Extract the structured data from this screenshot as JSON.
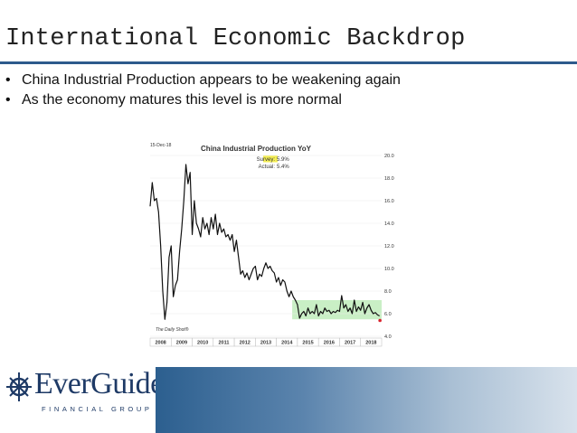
{
  "slide": {
    "title": "International Economic Backdrop",
    "bullets": [
      "China Industrial Production appears to be weakening again",
      "As the economy matures this level is more normal"
    ]
  },
  "logo": {
    "name": "EverGuide",
    "tagline": "FINANCIAL GROUP"
  },
  "chart_data": {
    "type": "line",
    "title": "China Industrial Production YoY",
    "date_label": "15-Dec-18",
    "source": "The Daily Shot®",
    "annotations": [
      "Survey: 5.9%",
      "Actual: 5.4%"
    ],
    "x_tick_labels": [
      "2008",
      "2009",
      "2010",
      "2011",
      "2012",
      "2013",
      "2014",
      "2015",
      "2016",
      "2017",
      "2018"
    ],
    "y_tick_labels": [
      "20.0",
      "18.0",
      "16.0",
      "14.0",
      "12.0",
      "10.0",
      "8.0",
      "6.0",
      "4.0"
    ],
    "xlim": [
      2008.0,
      2019.0
    ],
    "ylim": [
      4.0,
      20.0
    ],
    "highlight_band": {
      "x_from": 2014.75,
      "x_to": 2019.0,
      "y_from": 5.5,
      "y_to": 7.2,
      "color": "#c9efc5"
    },
    "series_color": "#111111",
    "marker_color": "#d9232d",
    "series": [
      {
        "x": [
          2008.0,
          2008.1,
          2008.2,
          2008.3,
          2008.4,
          2008.5,
          2008.6,
          2008.7,
          2008.8,
          2008.9,
          2009.0,
          2009.1,
          2009.2,
          2009.3,
          2009.4,
          2009.5,
          2009.6,
          2009.7,
          2009.8,
          2009.9,
          2010.0,
          2010.1,
          2010.2,
          2010.3,
          2010.4,
          2010.5,
          2010.6,
          2010.7,
          2010.8,
          2010.9,
          2011.0,
          2011.1,
          2011.2,
          2011.3,
          2011.4,
          2011.5,
          2011.6,
          2011.7,
          2011.8,
          2011.9,
          2012.0,
          2012.1,
          2012.2,
          2012.3,
          2012.4,
          2012.5,
          2012.6,
          2012.7,
          2012.8,
          2012.9,
          2013.0,
          2013.1,
          2013.2,
          2013.3,
          2013.4,
          2013.5,
          2013.6,
          2013.7,
          2013.8,
          2013.9,
          2014.0,
          2014.1,
          2014.2,
          2014.3,
          2014.4,
          2014.5,
          2014.6,
          2014.7,
          2014.8,
          2014.9,
          2015.0,
          2015.1,
          2015.2,
          2015.3,
          2015.4,
          2015.5,
          2015.6,
          2015.7,
          2015.8,
          2015.9,
          2016.0,
          2016.1,
          2016.2,
          2016.3,
          2016.4,
          2016.5,
          2016.6,
          2016.7,
          2016.8,
          2016.9,
          2017.0,
          2017.1,
          2017.2,
          2017.3,
          2017.4,
          2017.5,
          2017.6,
          2017.7,
          2017.8,
          2017.9,
          2018.0,
          2018.1,
          2018.2,
          2018.3,
          2018.4,
          2018.5,
          2018.6,
          2018.7,
          2018.8,
          2018.9
        ],
        "y": [
          15.5,
          17.6,
          16.0,
          16.2,
          15.0,
          12.0,
          8.0,
          5.5,
          7.0,
          11.0,
          12.0,
          7.5,
          8.5,
          9.0,
          11.5,
          13.5,
          16.0,
          19.2,
          17.5,
          18.5,
          13.0,
          16.0,
          14.0,
          13.5,
          12.8,
          14.5,
          13.5,
          14.0,
          13.0,
          14.5,
          13.5,
          14.8,
          13.0,
          14.0,
          13.2,
          13.5,
          12.8,
          13.0,
          12.5,
          13.0,
          11.5,
          12.5,
          11.0,
          9.5,
          9.8,
          9.2,
          9.6,
          9.0,
          9.5,
          10.0,
          10.2,
          9.0,
          9.5,
          9.3,
          10.0,
          10.5,
          10.0,
          10.2,
          9.8,
          9.6,
          8.8,
          9.2,
          8.5,
          9.0,
          8.8,
          8.0,
          7.5,
          8.0,
          7.5,
          7.2,
          6.8,
          5.6,
          6.0,
          6.2,
          5.8,
          6.5,
          6.0,
          6.2,
          6.0,
          6.8,
          5.8,
          6.2,
          6.0,
          6.5,
          6.2,
          6.3,
          6.0,
          6.2,
          6.1,
          6.3,
          6.2,
          7.6,
          6.5,
          6.8,
          6.2,
          6.5,
          6.0,
          7.2,
          6.2,
          6.6,
          6.3,
          7.0,
          6.0,
          6.5,
          6.8,
          6.3,
          6.0,
          6.1,
          5.9,
          5.8
        ],
        "marker": {
          "x": 2018.92,
          "y": 5.4
        }
      }
    ]
  }
}
